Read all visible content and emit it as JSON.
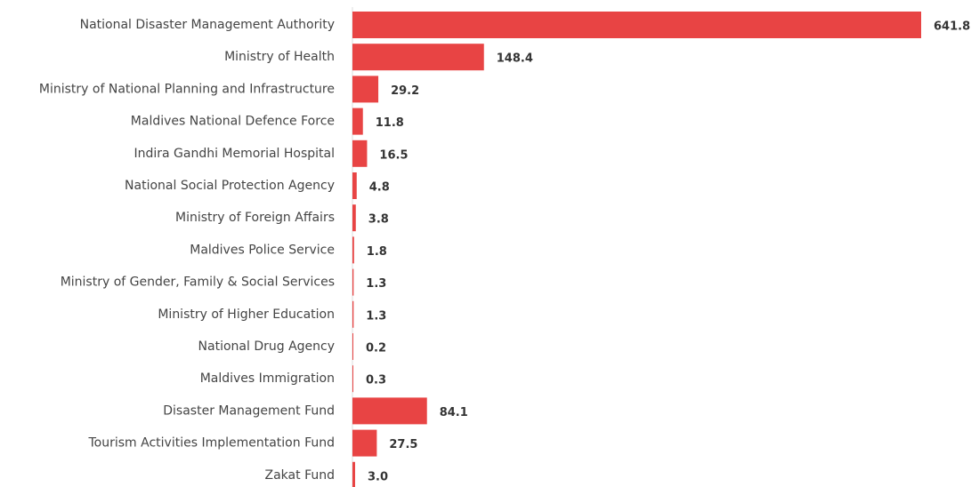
{
  "chart_data": {
    "type": "bar",
    "orientation": "horizontal",
    "title": "",
    "xlabel": "",
    "ylabel": "",
    "grid": false,
    "bar_color": "#e84444",
    "categories": [
      "National Disaster Management Authority",
      "Ministry of Health",
      "Ministry of National Planning and Infrastructure",
      "Maldives National Defence Force",
      "Indira Gandhi Memorial Hospital",
      "National Social Protection Agency",
      "Ministry of Foreign Affairs",
      "Maldives Police Service",
      "Ministry of Gender, Family & Social Services",
      "Ministry of Higher Education",
      "National Drug Agency",
      "Maldives Immigration",
      "Disaster Management Fund",
      "Tourism Activities Implementation Fund",
      "Zakat Fund"
    ],
    "values": [
      641.8,
      148.4,
      29.2,
      11.8,
      16.5,
      4.8,
      3.8,
      1.8,
      1.3,
      1.3,
      0.2,
      0.3,
      84.1,
      27.5,
      3.0
    ],
    "value_labels": [
      "641.8",
      "148.4",
      "29.2",
      "11.8",
      "16.5",
      "4.8",
      "3.8",
      "1.8",
      "1.3",
      "1.3",
      "0.2",
      "0.3",
      "84.1",
      "27.5",
      "3.0"
    ],
    "xlim": [
      0,
      641.8
    ]
  }
}
